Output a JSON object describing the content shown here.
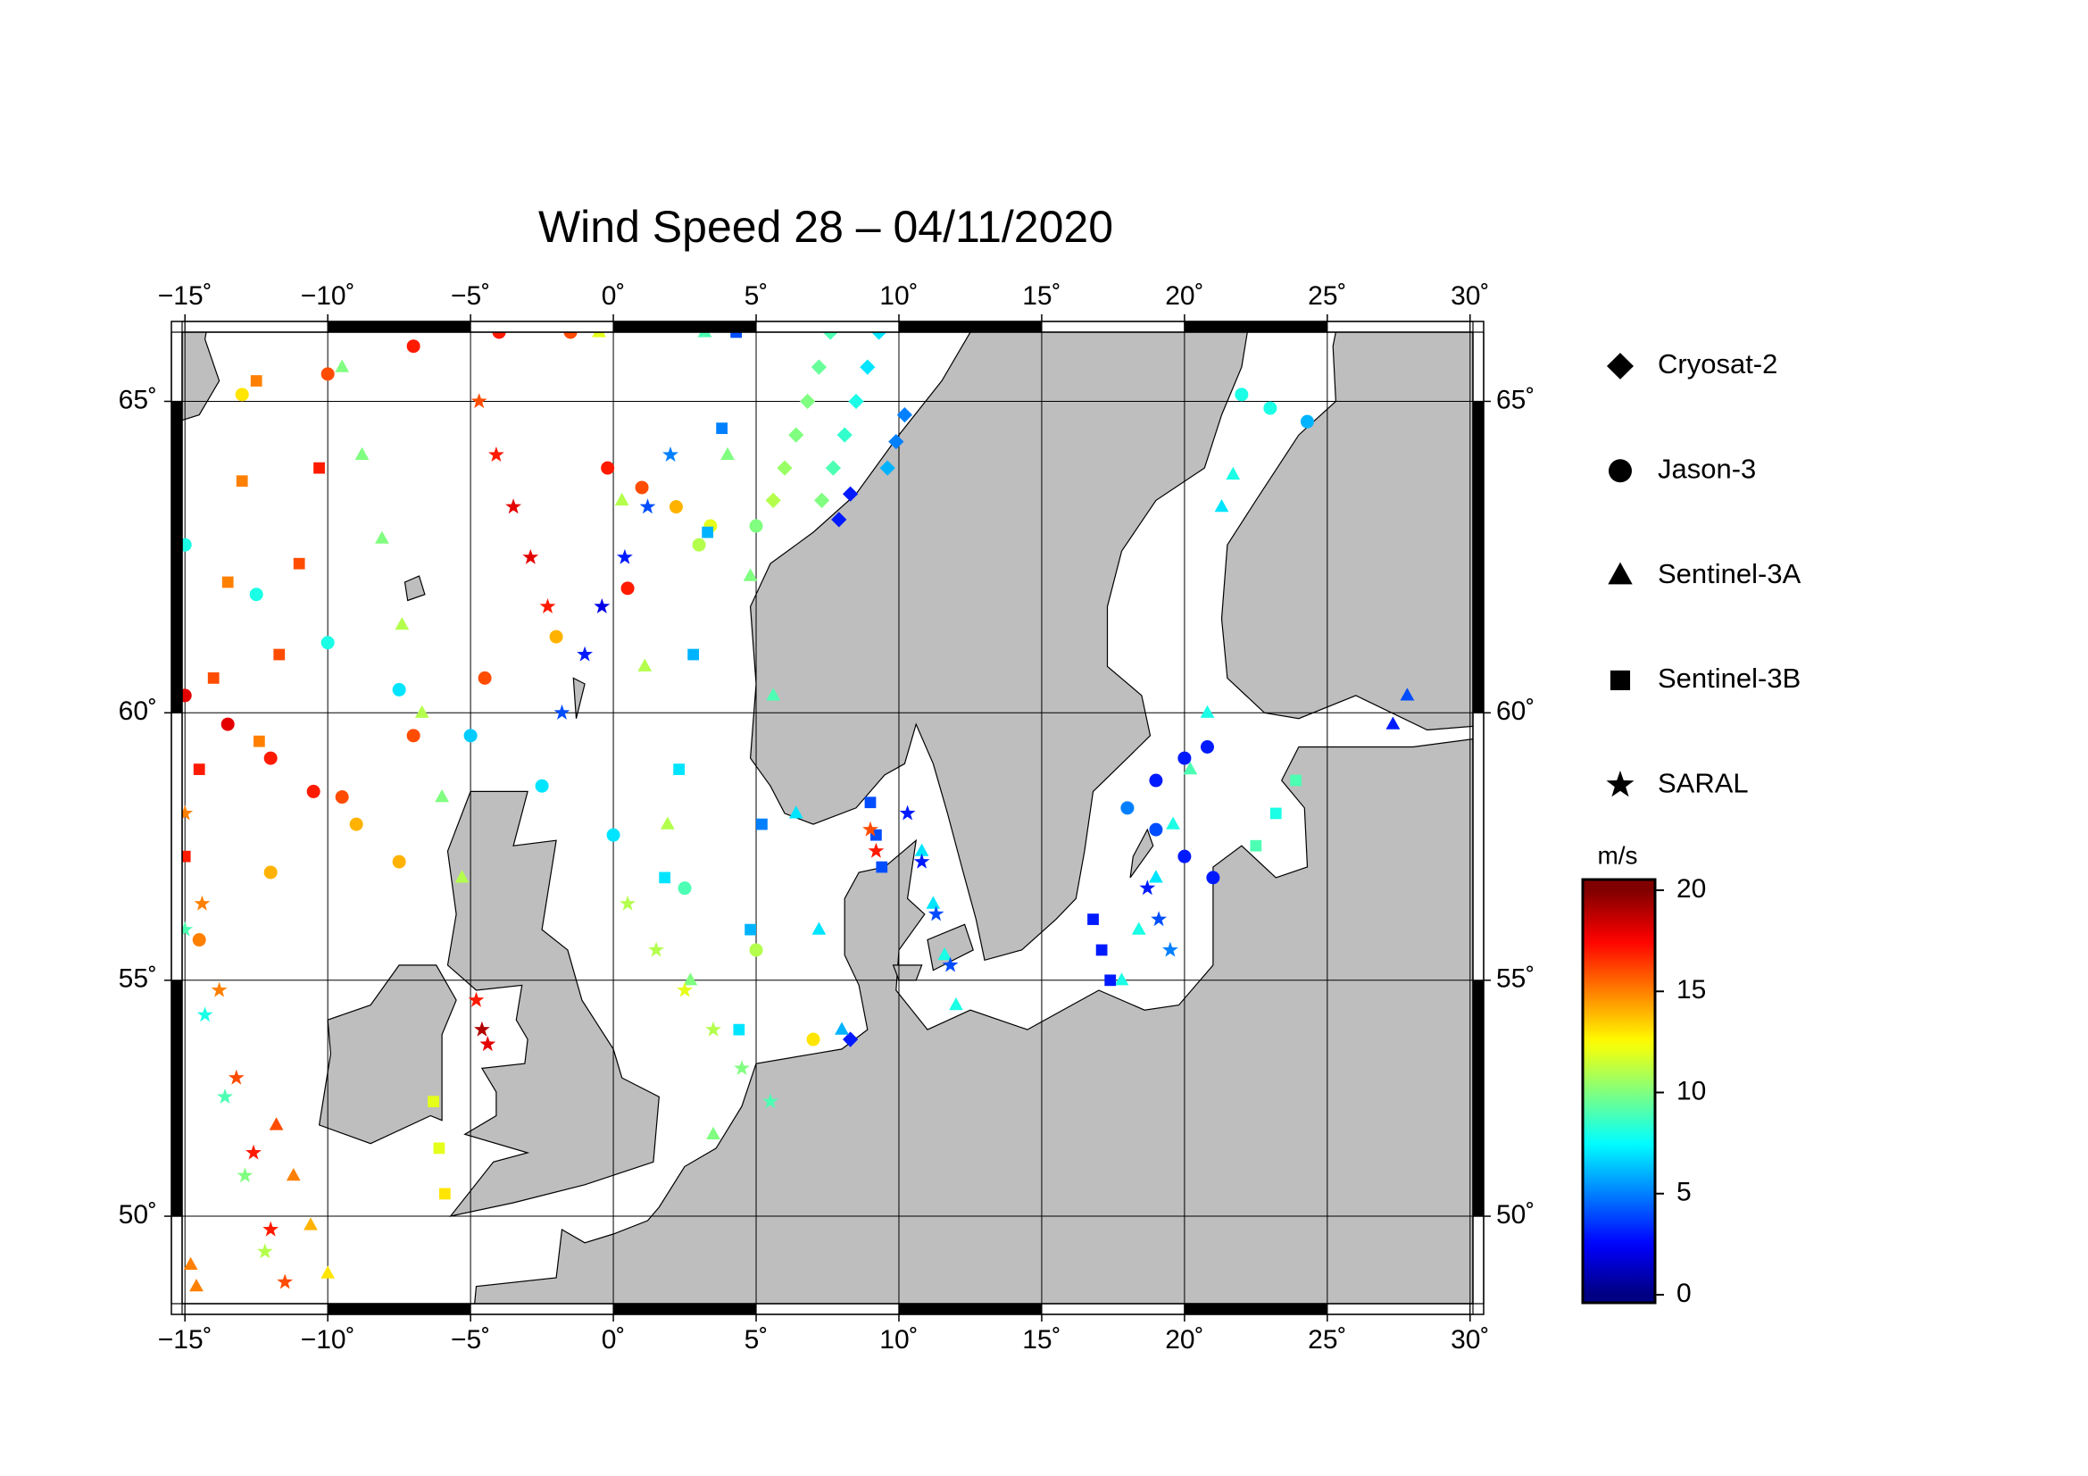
{
  "chart_data": {
    "type": "map",
    "title": "Wind Speed 28 – 04/11/2020",
    "xlim": [
      -15.1,
      30.1
    ],
    "ylim": [
      48,
      66
    ],
    "projection": "mercator",
    "grid": true,
    "land_color": "#bebebe",
    "xticks": [
      {
        "value": -15,
        "label": "−15˚"
      },
      {
        "value": -10,
        "label": "−10˚"
      },
      {
        "value": -5,
        "label": "−5˚"
      },
      {
        "value": 0,
        "label": "0˚"
      },
      {
        "value": 5,
        "label": "5˚"
      },
      {
        "value": 10,
        "label": "10˚"
      },
      {
        "value": 15,
        "label": "15˚"
      },
      {
        "value": 20,
        "label": "20˚"
      },
      {
        "value": 25,
        "label": "25˚"
      },
      {
        "value": 30,
        "label": "30˚"
      }
    ],
    "yticks": [
      {
        "value": 50,
        "label": "50˚"
      },
      {
        "value": 55,
        "label": "55˚"
      },
      {
        "value": 60,
        "label": "60˚"
      },
      {
        "value": 65,
        "label": "65˚"
      }
    ],
    "colorbar": {
      "label": "m/s",
      "colormap": "jet",
      "clim": [
        0,
        20
      ],
      "ticks": [
        0,
        5,
        10,
        15,
        20
      ]
    },
    "series": [
      {
        "name": "Cryosat-2",
        "marker": "diamond",
        "tracks": [
          {
            "lon": [
              9.3,
              8.9,
              8.5,
              8.1,
              7.7,
              7.3
            ],
            "lat": [
              66.0,
              65.5,
              65.0,
              64.5,
              64.0,
              63.5
            ],
            "wind": [
              7,
              7,
              8,
              8.5,
              9,
              10
            ]
          },
          {
            "lon": [
              7.6,
              7.2,
              6.8,
              6.4,
              6.0,
              5.6
            ],
            "lat": [
              66.0,
              65.5,
              65.0,
              64.5,
              64.0,
              63.5
            ],
            "wind": [
              9,
              9.5,
              10,
              10,
              10.5,
              11
            ]
          },
          {
            "lon": [
              10.2,
              9.9,
              9.6
            ],
            "lat": [
              64.8,
              64.4,
              64.0
            ],
            "wind": [
              5,
              5,
              6
            ]
          },
          {
            "lon": [
              8.3,
              7.9
            ],
            "lat": [
              63.6,
              63.2
            ],
            "wind": [
              3,
              3
            ]
          },
          {
            "lon": [
              8.3
            ],
            "lat": [
              53.8
            ],
            "wind": [
              3
            ]
          }
        ]
      },
      {
        "name": "Jason-3",
        "marker": "circle",
        "tracks": [
          {
            "lon": [
              -15,
              -12.5,
              -10,
              -7.5,
              -5,
              -2.5,
              0,
              2.5,
              5,
              7
            ],
            "lat": [
              62.8,
              62.0,
              61.2,
              60.4,
              59.6,
              58.7,
              57.8,
              56.8,
              55.6,
              53.8
            ],
            "wind": [
              8,
              8,
              8,
              7,
              6.5,
              7,
              7,
              9,
              11,
              13
            ]
          },
          {
            "lon": [
              -15,
              -13.5,
              -12,
              -10.5,
              -9,
              -7.5
            ],
            "lat": [
              60.3,
              59.8,
              59.2,
              58.6,
              58.0,
              57.3
            ],
            "wind": [
              18,
              18,
              17,
              17,
              14,
              14
            ]
          },
          {
            "lon": [
              -14.5,
              -12,
              -9.5,
              -7,
              -4.5,
              -2,
              0.5,
              3,
              5
            ],
            "lat": [
              55.8,
              57.1,
              58.5,
              59.6,
              60.6,
              61.3,
              62.1,
              62.8,
              63.1
            ],
            "wind": [
              15,
              14,
              16,
              16,
              16,
              14,
              17,
              11,
              10
            ]
          },
          {
            "lon": [
              -13,
              -10,
              -7,
              -4,
              -1.5
            ],
            "lat": [
              65.1,
              65.4,
              65.8,
              66.0,
              66.0
            ],
            "wind": [
              13,
              16,
              17,
              17,
              16
            ]
          },
          {
            "lon": [
              -0.2,
              1,
              2.2,
              3.4
            ],
            "lat": [
              64,
              63.7,
              63.4,
              63.1
            ],
            "wind": [
              17,
              16,
              14,
              12
            ]
          },
          {
            "lon": [
              21,
              20,
              19,
              18,
              19,
              20,
              20.8
            ],
            "lat": [
              57,
              57.4,
              57.9,
              58.3,
              58.8,
              59.2,
              59.4
            ],
            "wind": [
              3,
              3,
              4,
              5,
              3,
              3,
              3
            ]
          },
          {
            "lon": [
              22,
              23,
              24.3
            ],
            "lat": [
              65.1,
              64.9,
              64.7
            ],
            "wind": [
              8,
              8,
              6
            ]
          }
        ]
      },
      {
        "name": "Sentinel-3A",
        "marker": "triangle",
        "tracks": [
          {
            "lon": [
              -9.5,
              -8.8,
              -8.1,
              -7.4,
              -6.7,
              -6.0,
              -5.3
            ],
            "lat": [
              65.5,
              64.2,
              62.9,
              61.5,
              60.0,
              58.5,
              57.0
            ],
            "wind": [
              10,
              10,
              10,
              11,
              11,
              10,
              11
            ]
          },
          {
            "lon": [
              3.2,
              4.0,
              4.8,
              5.6,
              6.4,
              7.2,
              8.0
            ],
            "lat": [
              66.0,
              64.2,
              62.3,
              60.3,
              58.2,
              56.0,
              54.0
            ],
            "wind": [
              9,
              10,
              10,
              9,
              7,
              7,
              6
            ]
          },
          {
            "lon": [
              -0.5,
              0.3,
              1.1,
              1.9,
              2.7,
              3.5
            ],
            "lat": [
              66.0,
              63.5,
              60.8,
              58.0,
              55.0,
              51.8
            ],
            "wind": [
              12,
              11,
              11,
              11,
              10,
              10
            ]
          },
          {
            "lon": [
              -14.8,
              -14.6
            ],
            "lat": [
              48.9,
              48.4
            ],
            "wind": [
              15,
              15
            ]
          },
          {
            "lon": [
              17.8,
              18.4,
              19.0,
              19.6,
              20.2,
              20.8
            ],
            "lat": [
              55.0,
              56.0,
              57.0,
              58.0,
              59.0,
              60.0
            ],
            "wind": [
              8,
              8,
              7,
              8,
              9,
              8
            ]
          },
          {
            "lon": [
              27.8,
              27.3
            ],
            "lat": [
              60.3,
              59.8
            ],
            "wind": [
              4,
              3
            ]
          },
          {
            "lon": [
              21.7,
              21.3
            ],
            "lat": [
              63.9,
              63.4
            ],
            "wind": [
              8,
              7
            ]
          },
          {
            "lon": [
              10.8,
              11.2,
              11.6,
              12.0
            ],
            "lat": [
              57.5,
              56.5,
              55.5,
              54.5
            ],
            "wind": [
              7,
              7,
              8,
              8
            ]
          },
          {
            "lon": [
              -11.8,
              -11.2,
              -10.6,
              -10.0
            ],
            "lat": [
              52.0,
              50.9,
              49.8,
              48.7
            ],
            "wind": [
              16,
              15,
              14,
              13
            ]
          }
        ]
      },
      {
        "name": "Sentinel-3B",
        "marker": "square",
        "tracks": [
          {
            "lon": [
              -12.5,
              -13.0,
              -13.5,
              -14.0,
              -14.5,
              -15.0
            ],
            "lat": [
              65.3,
              63.8,
              62.2,
              60.6,
              59.0,
              57.4
            ],
            "wind": [
              15,
              15,
              15,
              16,
              17,
              17
            ]
          },
          {
            "lon": [
              -10.3,
              -11.0,
              -11.7,
              -12.4
            ],
            "lat": [
              64.0,
              62.5,
              61.0,
              59.5
            ],
            "wind": [
              17,
              16,
              16,
              15
            ]
          },
          {
            "lon": [
              -6.3,
              -6.1,
              -5.9
            ],
            "lat": [
              52.5,
              51.5,
              50.5
            ],
            "wind": [
              12,
              12,
              13
            ]
          },
          {
            "lon": [
              4.3,
              3.8,
              3.3,
              2.8,
              2.3,
              1.8
            ],
            "lat": [
              66.0,
              64.6,
              63.0,
              61.0,
              59.0,
              57.0
            ],
            "wind": [
              4,
              5,
              6,
              6,
              7,
              7
            ]
          },
          {
            "lon": [
              5.2,
              4.8,
              4.4
            ],
            "lat": [
              58,
              56,
              54
            ],
            "wind": [
              5,
              6,
              7
            ]
          },
          {
            "lon": [
              16.8,
              17.1,
              17.4
            ],
            "lat": [
              56.2,
              55.6,
              55.0
            ],
            "wind": [
              3,
              3,
              3
            ]
          },
          {
            "lon": [
              9.0,
              9.2,
              9.4
            ],
            "lat": [
              58.4,
              57.8,
              57.2
            ],
            "wind": [
              4,
              4,
              4
            ]
          },
          {
            "lon": [
              22.5,
              23.2,
              23.9
            ],
            "lat": [
              57.6,
              58.2,
              58.8
            ],
            "wind": [
              9,
              8,
              9
            ]
          }
        ]
      },
      {
        "name": "SARAL",
        "marker": "star",
        "tracks": [
          {
            "lon": [
              -4.7,
              -4.1,
              -3.5,
              -2.9,
              -2.3
            ],
            "lat": [
              65.0,
              64.2,
              63.4,
              62.6,
              61.8
            ],
            "wind": [
              16,
              17,
              18,
              18,
              17
            ]
          },
          {
            "lon": [
              -15,
              -14.4,
              -13.8,
              -13.2,
              -12.6,
              -12,
              -11.5
            ],
            "lat": [
              58.2,
              56.5,
              54.8,
              53.0,
              51.4,
              49.7,
              48.5
            ],
            "wind": [
              15,
              15,
              15,
              16,
              17,
              17,
              16
            ]
          },
          {
            "lon": [
              -15,
              -14.3,
              -13.6,
              -12.9,
              -12.2
            ],
            "lat": [
              56,
              54.3,
              52.6,
              50.9,
              49.2
            ],
            "wind": [
              9,
              8,
              9,
              10,
              11
            ]
          },
          {
            "lon": [
              -1.8,
              -1.0,
              -0.4,
              0.4,
              1.2,
              2
            ],
            "lat": [
              60.0,
              61.0,
              61.8,
              62.6,
              63.4,
              64.2
            ],
            "wind": [
              4,
              3,
              2,
              3,
              4,
              5
            ]
          },
          {
            "lon": [
              10.3,
              10.8,
              11.3,
              11.8
            ],
            "lat": [
              58.2,
              57.3,
              56.3,
              55.3
            ],
            "wind": [
              3,
              3,
              4,
              4
            ]
          },
          {
            "lon": [
              -4.8,
              -4.6,
              -4.4
            ],
            "lat": [
              54.6,
              54.0,
              53.7
            ],
            "wind": [
              17,
              19,
              18
            ]
          },
          {
            "lon": [
              9.0,
              9.2
            ],
            "lat": [
              57.9,
              57.5
            ],
            "wind": [
              16,
              17
            ]
          },
          {
            "lon": [
              18.7,
              19.1,
              19.5
            ],
            "lat": [
              56.8,
              56.2,
              55.6
            ],
            "wind": [
              3,
              4,
              5
            ]
          },
          {
            "lon": [
              0.5,
              1.5,
              2.5,
              3.5,
              4.5,
              5.5
            ],
            "lat": [
              56.5,
              55.6,
              54.8,
              54.0,
              53.2,
              52.5
            ],
            "wind": [
              11,
              11,
              12,
              11,
              10,
              9
            ]
          }
        ]
      }
    ]
  }
}
